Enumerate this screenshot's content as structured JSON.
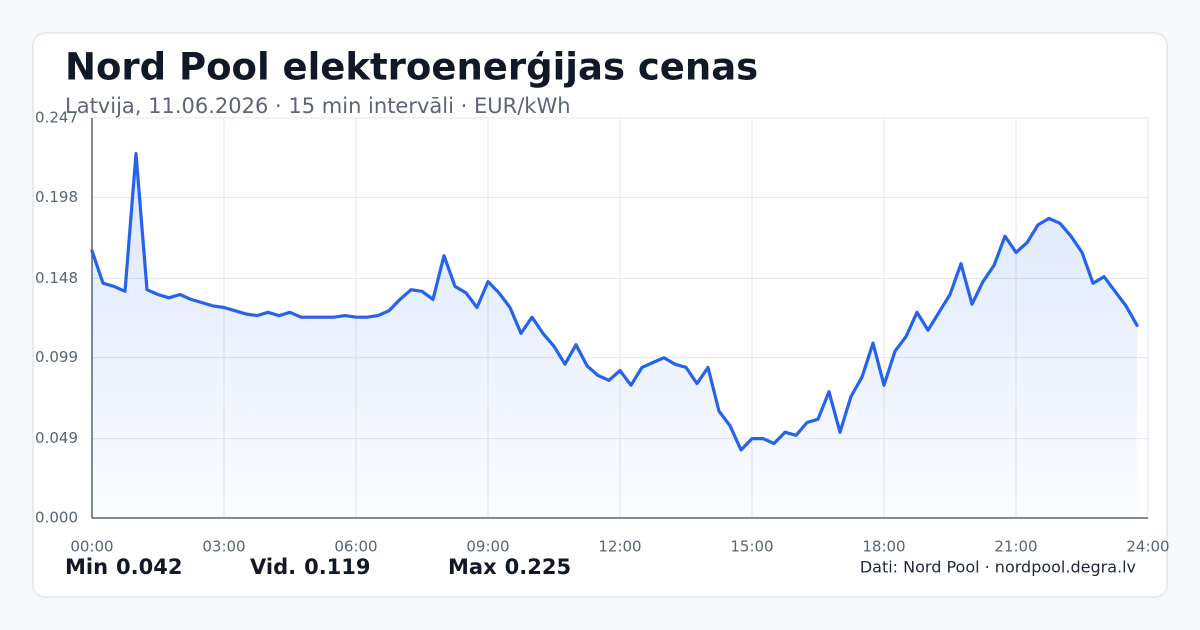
{
  "chart_data": {
    "type": "line",
    "title": "Nord Pool elektroenerģijas cenas",
    "subtitle": "Latvija, 11.06.2026 · 15 min intervāli · EUR/kWh",
    "x": [
      0,
      0.25,
      0.5,
      0.75,
      1,
      1.25,
      1.5,
      1.75,
      2,
      2.25,
      2.5,
      2.75,
      3,
      3.25,
      3.5,
      3.75,
      4,
      4.25,
      4.5,
      4.75,
      5,
      5.25,
      5.5,
      5.75,
      6,
      6.25,
      6.5,
      6.75,
      7,
      7.25,
      7.5,
      7.75,
      8,
      8.25,
      8.5,
      8.75,
      9,
      9.25,
      9.5,
      9.75,
      10,
      10.25,
      10.5,
      10.75,
      11,
      11.25,
      11.5,
      11.75,
      12,
      12.25,
      12.5,
      12.75,
      13,
      13.25,
      13.5,
      13.75,
      14,
      14.25,
      14.5,
      14.75,
      15,
      15.25,
      15.5,
      15.75,
      16,
      16.25,
      16.5,
      16.75,
      17,
      17.25,
      17.5,
      17.75,
      18,
      18.25,
      18.5,
      18.75,
      19,
      19.25,
      19.5,
      19.75,
      20,
      20.25,
      20.5,
      20.75,
      21,
      21.25,
      21.5,
      21.75,
      22,
      22.25,
      22.5,
      22.75,
      23,
      23.25,
      23.5,
      23.75
    ],
    "values": [
      0.165,
      0.145,
      0.143,
      0.14,
      0.225,
      0.141,
      0.138,
      0.136,
      0.138,
      0.135,
      0.133,
      0.131,
      0.13,
      0.128,
      0.126,
      0.125,
      0.127,
      0.125,
      0.127,
      0.124,
      0.124,
      0.124,
      0.124,
      0.125,
      0.124,
      0.124,
      0.125,
      0.128,
      0.135,
      0.141,
      0.14,
      0.135,
      0.162,
      0.143,
      0.139,
      0.13,
      0.146,
      0.139,
      0.13,
      0.114,
      0.124,
      0.114,
      0.106,
      0.095,
      0.107,
      0.094,
      0.088,
      0.085,
      0.091,
      0.082,
      0.093,
      0.096,
      0.099,
      0.095,
      0.093,
      0.083,
      0.093,
      0.066,
      0.057,
      0.042,
      0.049,
      0.049,
      0.046,
      0.053,
      0.051,
      0.059,
      0.061,
      0.078,
      0.053,
      0.075,
      0.087,
      0.108,
      0.082,
      0.103,
      0.112,
      0.127,
      0.116,
      0.127,
      0.138,
      0.157,
      0.132,
      0.146,
      0.156,
      0.174,
      0.164,
      0.17,
      0.181,
      0.185,
      0.182,
      0.174,
      0.164,
      0.145,
      0.149,
      0.14,
      0.131,
      0.119
    ],
    "color": "#2563eb",
    "xlim": [
      0,
      24
    ],
    "xticks": [
      {
        "value": 0,
        "label": "00:00"
      },
      {
        "value": 3,
        "label": "03:00"
      },
      {
        "value": 6,
        "label": "06:00"
      },
      {
        "value": 9,
        "label": "09:00"
      },
      {
        "value": 12,
        "label": "12:00"
      },
      {
        "value": 15,
        "label": "15:00"
      },
      {
        "value": 18,
        "label": "18:00"
      },
      {
        "value": 21,
        "label": "21:00"
      },
      {
        "value": 24,
        "label": "24:00"
      }
    ],
    "ylim": [
      0,
      0.247
    ],
    "yticks": [
      {
        "value": 0,
        "label": "0.000"
      },
      0.049,
      0.099,
      0.148,
      0.198,
      0.247
    ],
    "grid": true,
    "stats": [
      {
        "label": "Min",
        "value": 0.042
      },
      {
        "label": "Vid.",
        "value": 0.119
      },
      {
        "label": "Max",
        "value": 0.225
      }
    ],
    "source": "Dati: Nord Pool · nordpool.degra.lv"
  }
}
